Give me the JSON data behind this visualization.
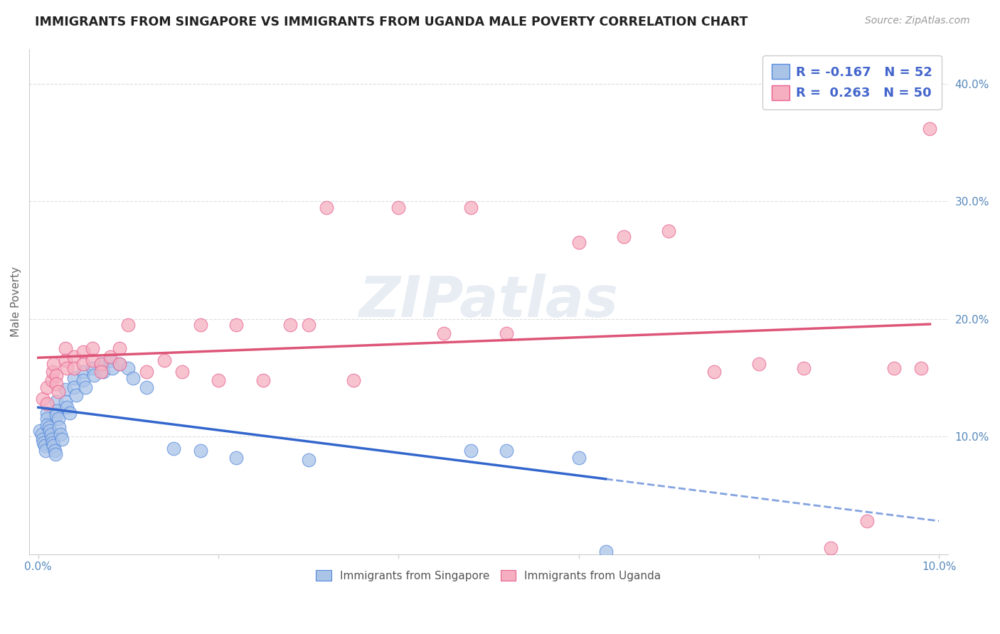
{
  "title": "IMMIGRANTS FROM SINGAPORE VS IMMIGRANTS FROM UGANDA MALE POVERTY CORRELATION CHART",
  "source": "Source: ZipAtlas.com",
  "ylabel": "Male Poverty",
  "xlim": [
    -0.001,
    0.101
  ],
  "ylim": [
    0.0,
    0.43
  ],
  "x_ticks": [
    0.0,
    0.02,
    0.04,
    0.06,
    0.08,
    0.1
  ],
  "x_tick_labels": [
    "0.0%",
    "",
    "",
    "",
    "",
    "10.0%"
  ],
  "y_ticks_right": [
    0.1,
    0.2,
    0.3,
    0.4
  ],
  "y_tick_labels_right": [
    "10.0%",
    "20.0%",
    "30.0%",
    "40.0%"
  ],
  "singapore_color": "#aac4e8",
  "uganda_color": "#f5afc0",
  "singapore_edge_color": "#5588dd",
  "uganda_edge_color": "#e86090",
  "singapore_line_color": "#3366cc",
  "uganda_line_color": "#dd5577",
  "singapore_R": -0.167,
  "singapore_N": 52,
  "uganda_R": 0.263,
  "uganda_N": 50,
  "legend_label_singapore": "Immigrants from Singapore",
  "legend_label_uganda": "Immigrants from Uganda",
  "watermark": "ZIPatlas",
  "singapore_x": [
    0.0002,
    0.0004,
    0.0005,
    0.0006,
    0.0007,
    0.0008,
    0.001,
    0.001,
    0.001,
    0.0012,
    0.0013,
    0.0014,
    0.0015,
    0.0016,
    0.0017,
    0.0018,
    0.0019,
    0.002,
    0.002,
    0.002,
    0.0022,
    0.0023,
    0.0025,
    0.0026,
    0.003,
    0.003,
    0.0032,
    0.0035,
    0.004,
    0.004,
    0.0042,
    0.005,
    0.005,
    0.0052,
    0.006,
    0.0062,
    0.007,
    0.0072,
    0.008,
    0.0082,
    0.009,
    0.01,
    0.0105,
    0.012,
    0.015,
    0.018,
    0.022,
    0.03,
    0.048,
    0.052,
    0.06,
    0.063
  ],
  "singapore_y": [
    0.105,
    0.102,
    0.098,
    0.095,
    0.092,
    0.088,
    0.12,
    0.115,
    0.11,
    0.108,
    0.105,
    0.102,
    0.098,
    0.095,
    0.092,
    0.088,
    0.085,
    0.13,
    0.122,
    0.118,
    0.115,
    0.108,
    0.102,
    0.098,
    0.14,
    0.13,
    0.125,
    0.12,
    0.15,
    0.142,
    0.135,
    0.155,
    0.148,
    0.142,
    0.158,
    0.152,
    0.162,
    0.155,
    0.165,
    0.158,
    0.162,
    0.158,
    0.15,
    0.142,
    0.09,
    0.088,
    0.082,
    0.08,
    0.088,
    0.088,
    0.082,
    0.002
  ],
  "uganda_x": [
    0.0005,
    0.001,
    0.001,
    0.0015,
    0.0016,
    0.0017,
    0.002,
    0.002,
    0.0022,
    0.003,
    0.003,
    0.0032,
    0.004,
    0.004,
    0.005,
    0.005,
    0.006,
    0.006,
    0.007,
    0.007,
    0.008,
    0.009,
    0.009,
    0.01,
    0.012,
    0.014,
    0.016,
    0.018,
    0.02,
    0.022,
    0.025,
    0.028,
    0.03,
    0.032,
    0.035,
    0.04,
    0.045,
    0.048,
    0.052,
    0.06,
    0.065,
    0.07,
    0.075,
    0.08,
    0.085,
    0.088,
    0.092,
    0.095,
    0.098,
    0.099
  ],
  "uganda_y": [
    0.132,
    0.142,
    0.128,
    0.148,
    0.155,
    0.162,
    0.152,
    0.145,
    0.138,
    0.175,
    0.165,
    0.158,
    0.168,
    0.158,
    0.172,
    0.162,
    0.175,
    0.165,
    0.162,
    0.155,
    0.168,
    0.175,
    0.162,
    0.195,
    0.155,
    0.165,
    0.155,
    0.195,
    0.148,
    0.195,
    0.148,
    0.195,
    0.195,
    0.295,
    0.148,
    0.295,
    0.188,
    0.295,
    0.188,
    0.265,
    0.27,
    0.275,
    0.155,
    0.162,
    0.158,
    0.005,
    0.028,
    0.158,
    0.158,
    0.362
  ]
}
